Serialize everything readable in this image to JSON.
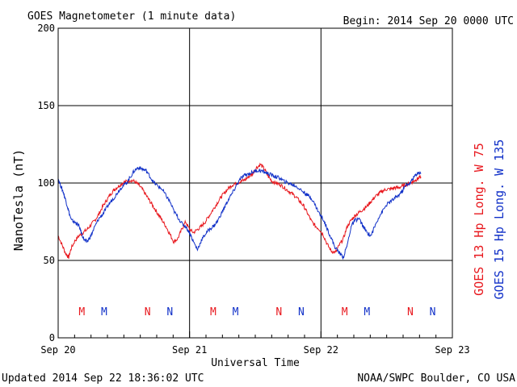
{
  "chart_data": {
    "type": "line",
    "title": "GOES Magnetometer (1 minute data)",
    "begin": "Begin:  2014 Sep 20 0000 UTC",
    "xlabel": "Universal Time",
    "ylabel": "NanoTesla (nT)",
    "ylim": [
      0,
      200
    ],
    "xlim": [
      0,
      3
    ],
    "x_unit": "days since Sep 20 0000 UTC",
    "yticks": [
      "0",
      "50",
      "100",
      "150",
      "200"
    ],
    "xticks": [
      "Sep 20",
      "Sep 21",
      "Sep 22",
      "Sep 23"
    ],
    "grid": true,
    "series": [
      {
        "name": "GOES 13 Hp  Long. W 75",
        "color": "#e8171d",
        "x": [
          0.0,
          0.03,
          0.06,
          0.08,
          0.1,
          0.13,
          0.16,
          0.19,
          0.22,
          0.25,
          0.28,
          0.31,
          0.34,
          0.37,
          0.4,
          0.43,
          0.46,
          0.49,
          0.52,
          0.55,
          0.58,
          0.61,
          0.64,
          0.67,
          0.7,
          0.73,
          0.76,
          0.79,
          0.82,
          0.85,
          0.88,
          0.91,
          0.94,
          0.97,
          1.0,
          1.03,
          1.06,
          1.09,
          1.12,
          1.15,
          1.18,
          1.21,
          1.24,
          1.27,
          1.3,
          1.33,
          1.36,
          1.39,
          1.42,
          1.45,
          1.48,
          1.51,
          1.54,
          1.57,
          1.6,
          1.63,
          1.66,
          1.69,
          1.72,
          1.75,
          1.78,
          1.81,
          1.84,
          1.87,
          1.9,
          1.93,
          1.96,
          1.99,
          2.02,
          2.05,
          2.08,
          2.11,
          2.14,
          2.17,
          2.2,
          2.23,
          2.26,
          2.29,
          2.32,
          2.35,
          2.38,
          2.41,
          2.44,
          2.47,
          2.5,
          2.53,
          2.56,
          2.59,
          2.62,
          2.65,
          2.68,
          2.7,
          2.72,
          2.74,
          2.76
        ],
        "values": [
          66,
          60,
          54,
          52,
          58,
          63,
          66,
          68,
          70,
          73,
          76,
          80,
          85,
          89,
          93,
          96,
          98,
          100,
          101,
          102,
          101,
          99,
          96,
          92,
          88,
          84,
          80,
          76,
          72,
          67,
          62,
          64,
          70,
          75,
          70,
          68,
          70,
          72,
          75,
          79,
          83,
          87,
          91,
          94,
          97,
          99,
          100,
          101,
          102,
          104,
          106,
          110,
          112,
          109,
          104,
          101,
          100,
          99,
          97,
          95,
          93,
          91,
          88,
          85,
          80,
          75,
          72,
          70,
          66,
          60,
          56,
          55,
          60,
          64,
          72,
          76,
          79,
          81,
          83,
          85,
          88,
          91,
          93,
          95,
          96,
          96,
          97,
          97,
          98,
          99,
          100,
          101,
          102,
          103,
          104
        ]
      },
      {
        "name": "GOES 15 Hp  Long. W 135",
        "color": "#1030c8",
        "x": [
          0.0,
          0.02,
          0.04,
          0.06,
          0.08,
          0.1,
          0.12,
          0.14,
          0.16,
          0.18,
          0.2,
          0.22,
          0.25,
          0.28,
          0.31,
          0.34,
          0.37,
          0.4,
          0.43,
          0.46,
          0.49,
          0.52,
          0.55,
          0.58,
          0.61,
          0.64,
          0.67,
          0.7,
          0.73,
          0.76,
          0.79,
          0.82,
          0.85,
          0.88,
          0.91,
          0.94,
          0.97,
          1.0,
          1.03,
          1.06,
          1.09,
          1.12,
          1.15,
          1.18,
          1.21,
          1.24,
          1.27,
          1.3,
          1.33,
          1.36,
          1.39,
          1.42,
          1.45,
          1.48,
          1.51,
          1.54,
          1.57,
          1.6,
          1.63,
          1.66,
          1.69,
          1.72,
          1.75,
          1.78,
          1.81,
          1.84,
          1.87,
          1.9,
          1.93,
          1.96,
          1.99,
          2.02,
          2.05,
          2.08,
          2.11,
          2.14,
          2.17,
          2.2,
          2.23,
          2.26,
          2.29,
          2.32,
          2.35,
          2.38,
          2.41,
          2.44,
          2.47,
          2.5,
          2.53,
          2.56,
          2.59,
          2.62,
          2.65,
          2.68,
          2.7,
          2.72,
          2.74,
          2.76
        ],
        "values": [
          103,
          98,
          94,
          88,
          82,
          76,
          75,
          74,
          72,
          67,
          63,
          62,
          66,
          72,
          77,
          80,
          84,
          88,
          91,
          95,
          98,
          100,
          104,
          108,
          110,
          109,
          108,
          104,
          100,
          98,
          96,
          92,
          88,
          82,
          78,
          74,
          72,
          68,
          62,
          57,
          63,
          67,
          70,
          72,
          75,
          80,
          85,
          90,
          94,
          99,
          103,
          105,
          106,
          107,
          108,
          108,
          107,
          106,
          105,
          104,
          103,
          101,
          100,
          99,
          98,
          96,
          94,
          92,
          90,
          85,
          80,
          76,
          70,
          64,
          58,
          55,
          52,
          60,
          72,
          76,
          77,
          72,
          68,
          66,
          72,
          78,
          82,
          86,
          88,
          90,
          92,
          95,
          99,
          100,
          103,
          105,
          107,
          106
        ]
      }
    ],
    "markers": [
      {
        "label": "M",
        "day": 0.18,
        "color": "#e8171d"
      },
      {
        "label": "M",
        "day": 0.35,
        "color": "#1030c8"
      },
      {
        "label": "N",
        "day": 0.68,
        "color": "#e8171d"
      },
      {
        "label": "N",
        "day": 0.85,
        "color": "#1030c8"
      },
      {
        "label": "M",
        "day": 1.18,
        "color": "#e8171d"
      },
      {
        "label": "M",
        "day": 1.35,
        "color": "#1030c8"
      },
      {
        "label": "N",
        "day": 1.68,
        "color": "#e8171d"
      },
      {
        "label": "N",
        "day": 1.85,
        "color": "#1030c8"
      },
      {
        "label": "M",
        "day": 2.18,
        "color": "#e8171d"
      },
      {
        "label": "M",
        "day": 2.35,
        "color": "#1030c8"
      },
      {
        "label": "N",
        "day": 2.68,
        "color": "#e8171d"
      },
      {
        "label": "N",
        "day": 2.85,
        "color": "#1030c8"
      }
    ]
  },
  "footer": {
    "updated": "Updated 2014 Sep 22 18:36:02 UTC",
    "source": "NOAA/SWPC Boulder, CO USA"
  }
}
